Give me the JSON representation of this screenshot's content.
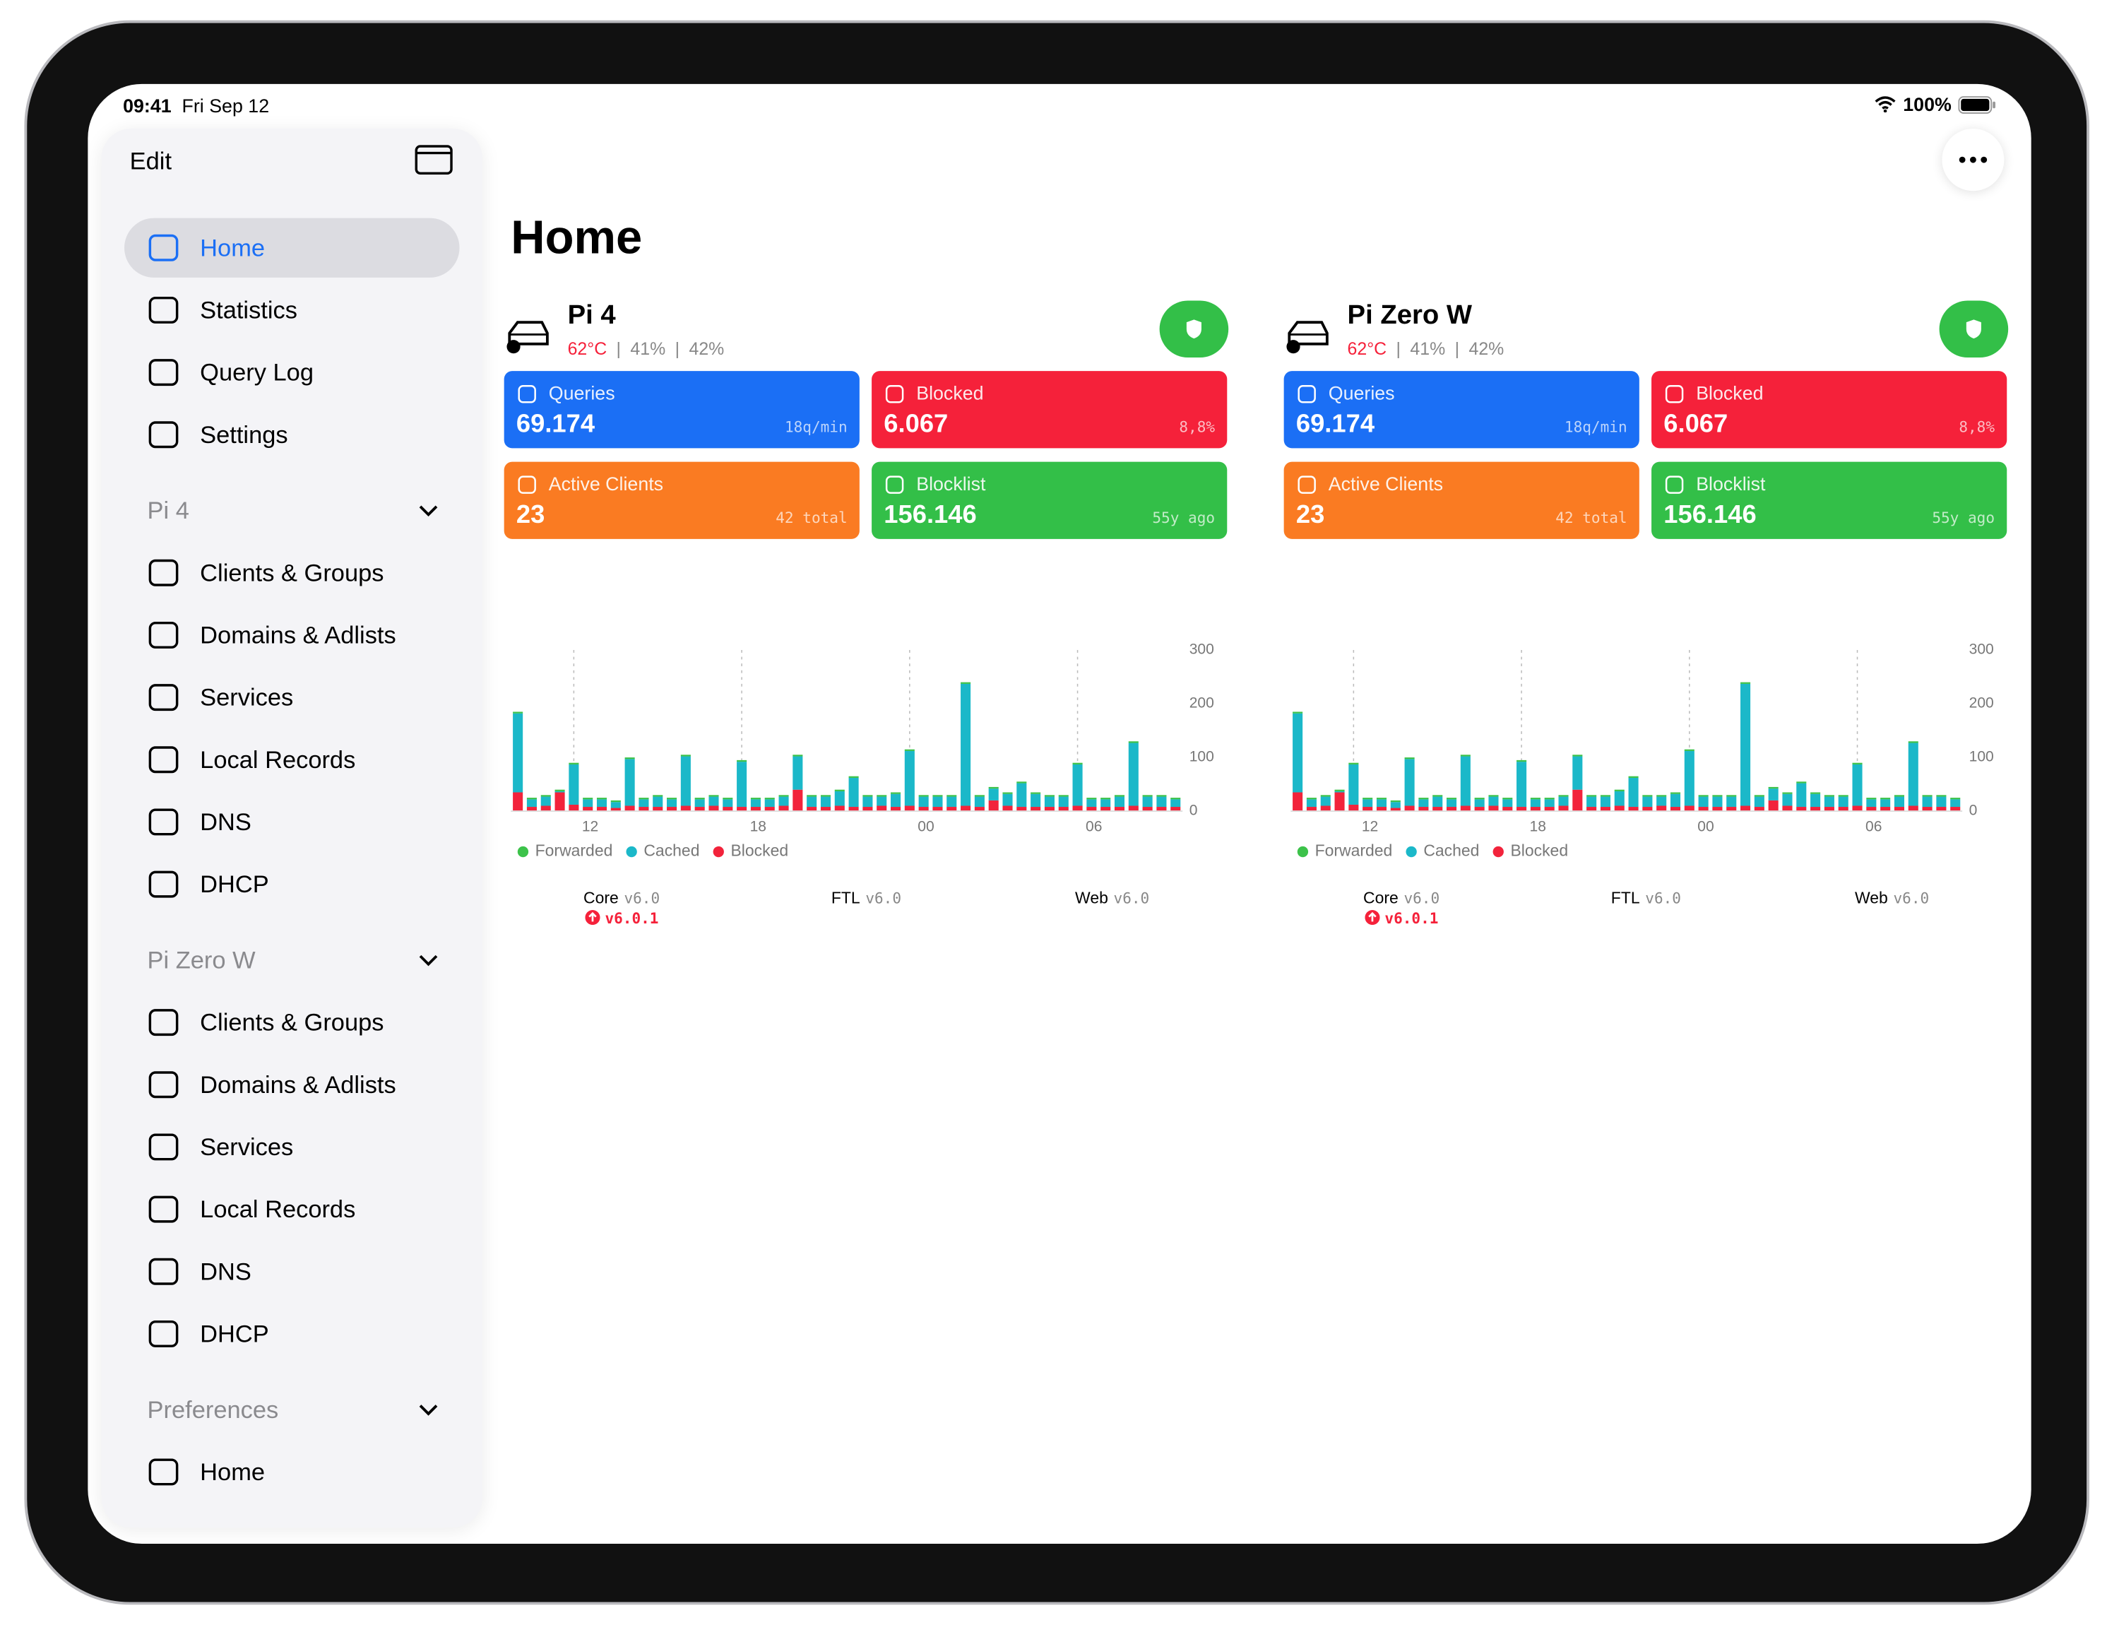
{
  "status_bar": {
    "time": "09:41",
    "date": "Fri Sep 12",
    "battery": "100%"
  },
  "sidebar": {
    "edit": "Edit",
    "top_items": [
      "Home",
      "Statistics",
      "Query Log",
      "Settings"
    ],
    "sections": [
      {
        "title": "Pi 4",
        "items": [
          "Clients & Groups",
          "Domains & Adlists",
          "Services",
          "Local Records",
          "DNS",
          "DHCP"
        ]
      },
      {
        "title": "Pi Zero W",
        "items": [
          "Clients & Groups",
          "Domains & Adlists",
          "Services",
          "Local Records",
          "DNS",
          "DHCP"
        ]
      },
      {
        "title": "Preferences",
        "items": [
          "Home"
        ]
      }
    ]
  },
  "main": {
    "title": "Home",
    "devices": [
      {
        "name": "Pi 4",
        "temperature": "62°C",
        "cpu": "41%",
        "memory": "42%",
        "stats": [
          {
            "label": "Queries",
            "value": "69.174",
            "detail": "18q/min",
            "color": "#1b6ff5"
          },
          {
            "label": "Blocked",
            "value": "6.067",
            "detail": "8,8%",
            "color": "#f5213a"
          },
          {
            "label": "Active Clients",
            "value": "23",
            "detail": "42 total",
            "color": "#fa7b22"
          },
          {
            "label": "Blocklist",
            "value": "156.146",
            "detail": "55y ago",
            "color": "#33bf48"
          }
        ],
        "chart": {
          "type": "bar",
          "stacked": true,
          "categories": [
            null,
            null,
            null,
            null,
            "12",
            null,
            null,
            null,
            null,
            null,
            null,
            null,
            null,
            null,
            null,
            null,
            "18",
            null,
            null,
            null,
            null,
            null,
            null,
            null,
            null,
            null,
            null,
            null,
            "00",
            null,
            null,
            null,
            null,
            null,
            null,
            null,
            null,
            null,
            null,
            null,
            "06",
            null,
            null,
            null,
            null,
            null,
            null,
            null
          ],
          "series": [
            {
              "name": "Forwarded",
              "color": "#3cc24a",
              "values": [
                3,
                3,
                3,
                3,
                3,
                3,
                3,
                3,
                3,
                3,
                3,
                3,
                3,
                3,
                3,
                3,
                3,
                3,
                3,
                3,
                3,
                3,
                3,
                3,
                3,
                3,
                3,
                3,
                3,
                3,
                3,
                3,
                3,
                3,
                3,
                3,
                3,
                3,
                3,
                3,
                3,
                3,
                3,
                3,
                3,
                3,
                3,
                3
              ]
            },
            {
              "name": "Cached",
              "color": "#1bb8c9",
              "values": [
                147,
                14,
                17,
                2,
                75,
                14,
                14,
                11,
                87,
                14,
                19,
                14,
                92,
                14,
                17,
                14,
                84,
                14,
                14,
                17,
                62,
                19,
                19,
                27,
                54,
                19,
                17,
                24,
                102,
                19,
                19,
                19,
                227,
                19,
                22,
                22,
                44,
                24,
                19,
                19,
                77,
                14,
                14,
                19,
                117,
                19,
                19,
                14
              ]
            },
            {
              "name": "Blocked",
              "color": "#f2233b",
              "values": [
                35,
                8,
                10,
                35,
                12,
                8,
                8,
                6,
                10,
                8,
                8,
                8,
                10,
                8,
                10,
                8,
                8,
                8,
                8,
                10,
                40,
                8,
                8,
                10,
                8,
                8,
                10,
                8,
                10,
                8,
                8,
                8,
                10,
                8,
                20,
                10,
                8,
                8,
                8,
                8,
                10,
                8,
                8,
                8,
                10,
                8,
                8,
                8
              ]
            }
          ],
          "ylim": [
            0,
            300
          ],
          "yticks": [
            0,
            100,
            200,
            300
          ]
        },
        "versions": [
          {
            "name": "Core",
            "version": "v6.0",
            "update": "v6.0.1"
          },
          {
            "name": "FTL",
            "version": "v6.0"
          },
          {
            "name": "Web",
            "version": "v6.0"
          }
        ]
      },
      {
        "name": "Pi Zero W",
        "temperature": "62°C",
        "cpu": "41%",
        "memory": "42%",
        "stats": [
          {
            "label": "Queries",
            "value": "69.174",
            "detail": "18q/min",
            "color": "#1b6ff5"
          },
          {
            "label": "Blocked",
            "value": "6.067",
            "detail": "8,8%",
            "color": "#f5213a"
          },
          {
            "label": "Active Clients",
            "value": "23",
            "detail": "42 total",
            "color": "#fa7b22"
          },
          {
            "label": "Blocklist",
            "value": "156.146",
            "detail": "55y ago",
            "color": "#33bf48"
          }
        ],
        "chart": {
          "type": "bar",
          "stacked": true,
          "categories": [
            null,
            null,
            null,
            null,
            "12",
            null,
            null,
            null,
            null,
            null,
            null,
            null,
            null,
            null,
            null,
            null,
            "18",
            null,
            null,
            null,
            null,
            null,
            null,
            null,
            null,
            null,
            null,
            null,
            "00",
            null,
            null,
            null,
            null,
            null,
            null,
            null,
            null,
            null,
            null,
            null,
            "06",
            null,
            null,
            null,
            null,
            null,
            null,
            null
          ],
          "series": [
            {
              "name": "Forwarded",
              "color": "#3cc24a",
              "values": [
                3,
                3,
                3,
                3,
                3,
                3,
                3,
                3,
                3,
                3,
                3,
                3,
                3,
                3,
                3,
                3,
                3,
                3,
                3,
                3,
                3,
                3,
                3,
                3,
                3,
                3,
                3,
                3,
                3,
                3,
                3,
                3,
                3,
                3,
                3,
                3,
                3,
                3,
                3,
                3,
                3,
                3,
                3,
                3,
                3,
                3,
                3,
                3
              ]
            },
            {
              "name": "Cached",
              "color": "#1bb8c9",
              "values": [
                147,
                14,
                17,
                2,
                75,
                14,
                14,
                11,
                87,
                14,
                19,
                14,
                92,
                14,
                17,
                14,
                84,
                14,
                14,
                17,
                62,
                19,
                19,
                27,
                54,
                19,
                17,
                24,
                102,
                19,
                19,
                19,
                227,
                19,
                22,
                22,
                44,
                24,
                19,
                19,
                77,
                14,
                14,
                19,
                117,
                19,
                19,
                14
              ]
            },
            {
              "name": "Blocked",
              "color": "#f2233b",
              "values": [
                35,
                8,
                10,
                35,
                12,
                8,
                8,
                6,
                10,
                8,
                8,
                8,
                10,
                8,
                10,
                8,
                8,
                8,
                8,
                10,
                40,
                8,
                8,
                10,
                8,
                8,
                10,
                8,
                10,
                8,
                8,
                8,
                10,
                8,
                20,
                10,
                8,
                8,
                8,
                8,
                10,
                8,
                8,
                8,
                10,
                8,
                8,
                8
              ]
            }
          ],
          "ylim": [
            0,
            300
          ],
          "yticks": [
            0,
            100,
            200,
            300
          ]
        },
        "versions": [
          {
            "name": "Core",
            "version": "v6.0",
            "update": "v6.0.1"
          },
          {
            "name": "FTL",
            "version": "v6.0"
          },
          {
            "name": "Web",
            "version": "v6.0"
          }
        ]
      }
    ]
  }
}
